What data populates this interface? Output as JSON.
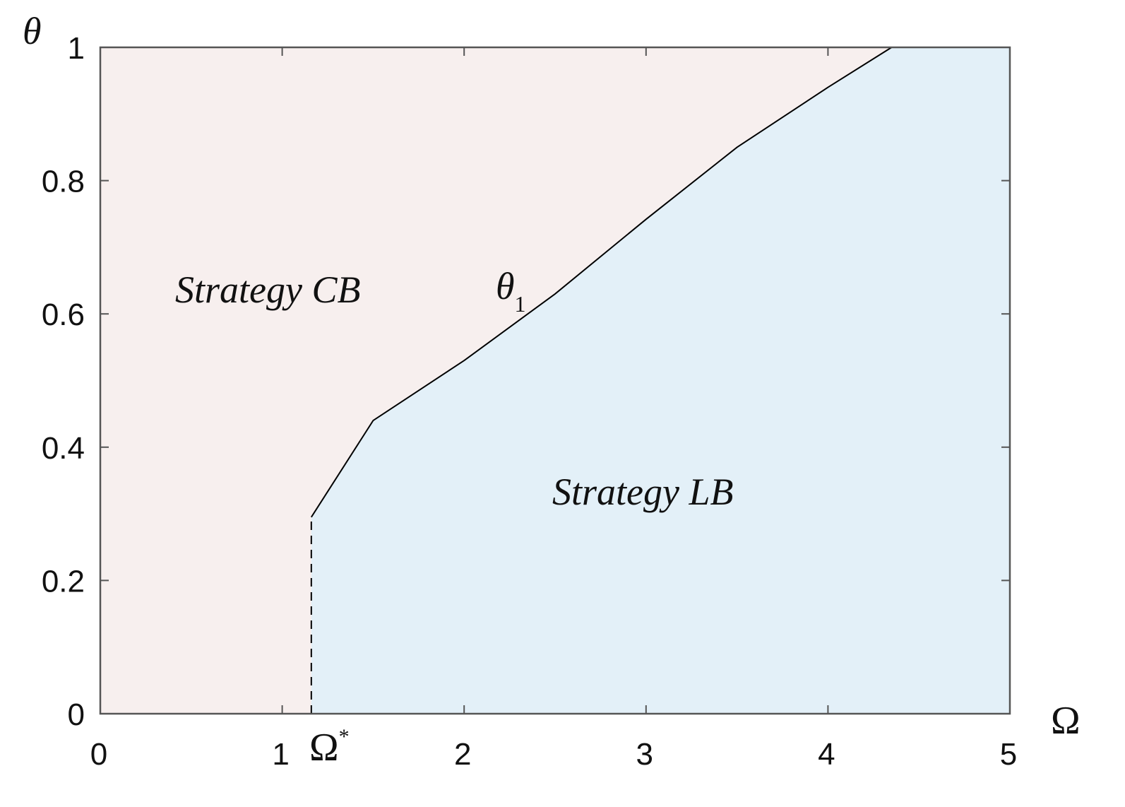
{
  "chart_data": {
    "type": "line",
    "x_label": "Ω",
    "y_label": "θ",
    "xlim": [
      0,
      5
    ],
    "ylim": [
      0,
      1
    ],
    "xticks": [
      0,
      1,
      2,
      3,
      4,
      5
    ],
    "yticks": [
      0,
      0.2,
      0.4,
      0.6,
      0.8,
      1
    ],
    "region_colors": {
      "above": "#f7efee",
      "below": "#e3f0f8"
    },
    "series": [
      {
        "name": "θ₁",
        "color": "#000000",
        "dashed": false,
        "x": [
          1.16,
          1.5,
          2,
          2.5,
          3,
          3.5,
          4,
          4.35
        ],
        "values": [
          0.295,
          0.44,
          0.53,
          0.63,
          0.742,
          0.85,
          0.94,
          1
        ]
      },
      {
        "name": "Ω*",
        "color": "#000000",
        "dashed": true,
        "x": [
          1.16,
          1.16
        ],
        "values": [
          0,
          0.295
        ]
      }
    ],
    "annotations": {
      "strategy_cb": "Strategy CB",
      "strategy_lb": "Strategy LB",
      "theta_symbol": "θ",
      "theta_subscript": "1",
      "omega_symbol": "Ω",
      "omega_superscript": "*"
    }
  }
}
